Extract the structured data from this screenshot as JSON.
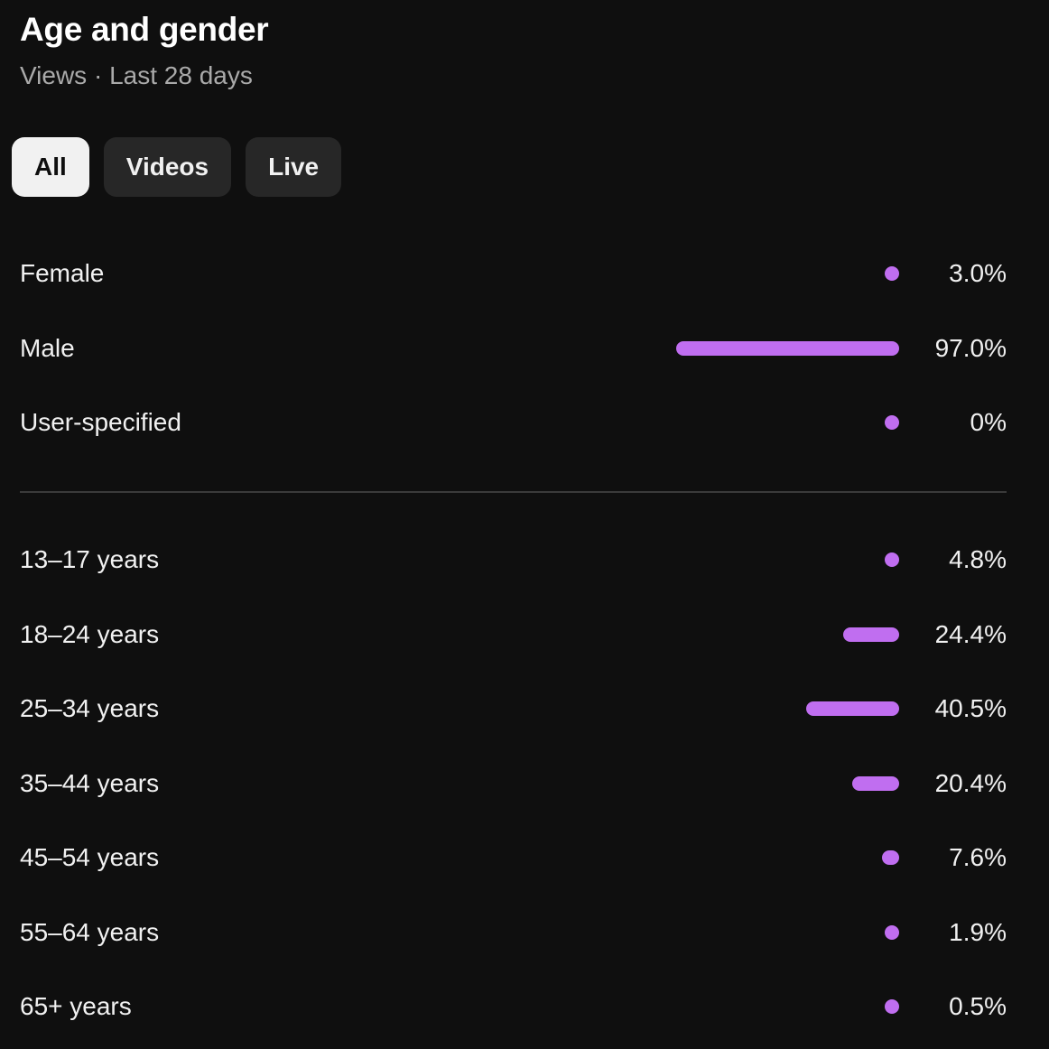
{
  "header": {
    "title": "Age and gender",
    "subtitle": "Views · Last 28 days"
  },
  "tabs": [
    {
      "label": "All",
      "active": true
    },
    {
      "label": "Videos",
      "active": false
    },
    {
      "label": "Live",
      "active": false
    }
  ],
  "colors": {
    "bar": "#c06ef0",
    "background": "#0f0f0f"
  },
  "gender": [
    {
      "label": "Female",
      "value": "3.0%",
      "percent": 3.0
    },
    {
      "label": "Male",
      "value": "97.0%",
      "percent": 97.0
    },
    {
      "label": "User-specified",
      "value": "0%",
      "percent": 0
    }
  ],
  "age": [
    {
      "label": "13–17 years",
      "value": "4.8%",
      "percent": 4.8
    },
    {
      "label": "18–24 years",
      "value": "24.4%",
      "percent": 24.4
    },
    {
      "label": "25–34 years",
      "value": "40.5%",
      "percent": 40.5
    },
    {
      "label": "35–44 years",
      "value": "20.4%",
      "percent": 20.4
    },
    {
      "label": "45–54 years",
      "value": "7.6%",
      "percent": 7.6
    },
    {
      "label": "55–64 years",
      "value": "1.9%",
      "percent": 1.9
    },
    {
      "label": "65+ years",
      "value": "0.5%",
      "percent": 0.5
    }
  ]
}
